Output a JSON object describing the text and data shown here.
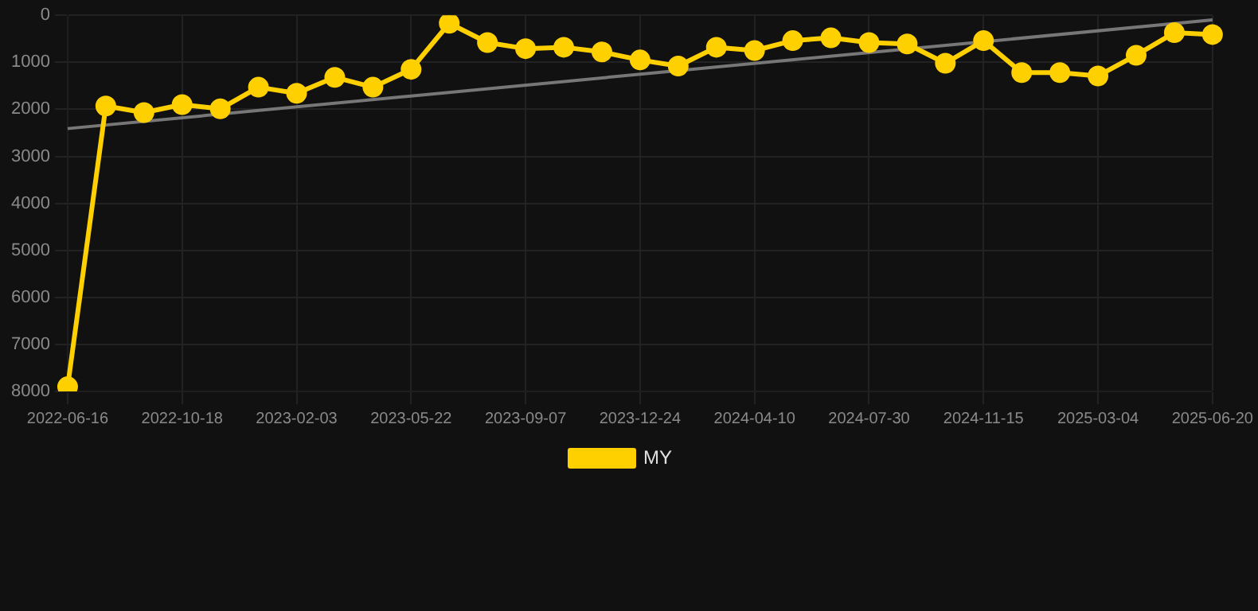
{
  "chart_data": {
    "type": "line",
    "categories": [
      "2022-06-16",
      null,
      null,
      "2022-10-18",
      null,
      null,
      "2023-02-03",
      null,
      null,
      "2023-05-22",
      null,
      null,
      "2023-09-07",
      null,
      null,
      "2023-12-24",
      null,
      null,
      "2024-04-10",
      null,
      null,
      "2024-07-30",
      null,
      null,
      "2024-11-15",
      null,
      null,
      "2025-03-04",
      null,
      null,
      "2025-06-20"
    ],
    "series": [
      {
        "name": "MY",
        "color": "#ffd000",
        "values": [
          7900,
          1930,
          2070,
          1900,
          1990,
          1530,
          1660,
          1320,
          1530,
          1150,
          170,
          580,
          710,
          680,
          780,
          950,
          1080,
          680,
          750,
          540,
          480,
          580,
          610,
          1020,
          540,
          1220,
          1220,
          1290,
          850,
          370,
          410
        ]
      },
      {
        "color": "#777777",
        "marker": "none",
        "values": [
          2410,
          null,
          null,
          null,
          null,
          null,
          null,
          null,
          null,
          null,
          null,
          null,
          null,
          null,
          null,
          null,
          null,
          null,
          null,
          null,
          null,
          null,
          null,
          null,
          null,
          null,
          null,
          null,
          null,
          null,
          100
        ]
      }
    ],
    "ylim": [
      8000,
      0
    ],
    "yticks": [
      0,
      1000,
      2000,
      3000,
      4000,
      5000,
      6000,
      7000,
      8000
    ],
    "grid": true,
    "legend": "bottom",
    "marker": "circle"
  }
}
